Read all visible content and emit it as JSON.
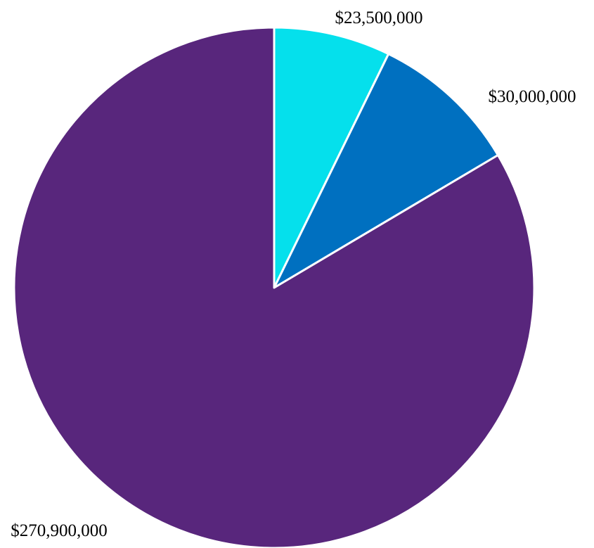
{
  "chart_data": {
    "type": "pie",
    "categories": [],
    "values": [
      23500000,
      30000000,
      270900000
    ],
    "labels": [
      "$23,500,000",
      "$30,000,000",
      "$270,900,000"
    ],
    "colors": [
      "#05e0ec",
      "#0070c0",
      "#58267c"
    ],
    "title": "",
    "legend": "none"
  }
}
